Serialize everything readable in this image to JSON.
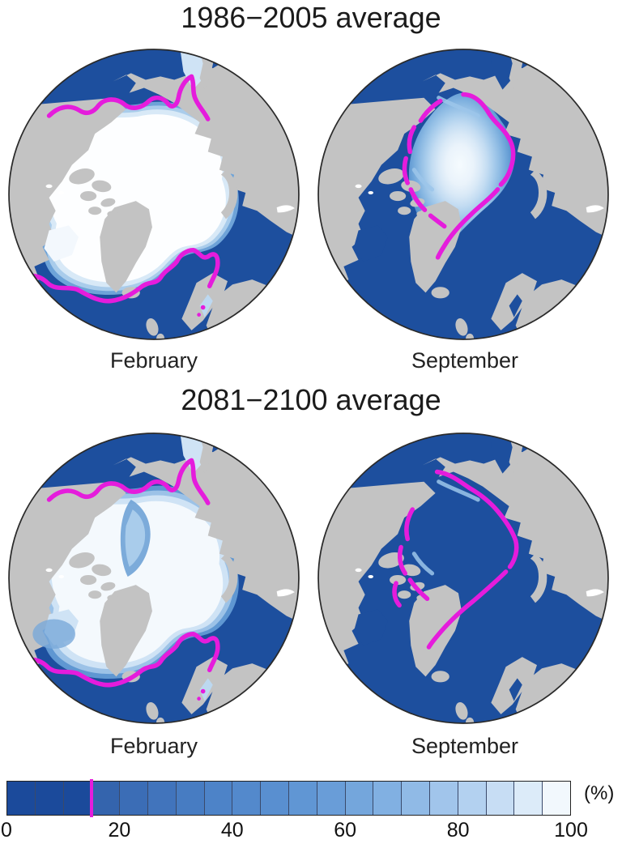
{
  "figure": {
    "rows": [
      {
        "title": "1986−2005 average",
        "panels": [
          {
            "month": "February"
          },
          {
            "month": "September"
          }
        ]
      },
      {
        "title": "2081−2100 average",
        "panels": [
          {
            "month": "February"
          },
          {
            "month": "September"
          }
        ]
      }
    ]
  },
  "colorbar": {
    "unit_label": "(%)",
    "ticks": [
      "0",
      "20",
      "40",
      "60",
      "80",
      "100"
    ],
    "segments": [
      "#1b4a9b",
      "#1b4a9b",
      "#1b4a9b",
      "#3464ad",
      "#3b6db6",
      "#4174bc",
      "#477cc2",
      "#4d83c8",
      "#5389cc",
      "#598fd0",
      "#6096d4",
      "#699dd8",
      "#74a6dc",
      "#81b0e2",
      "#90bae6",
      "#a1c5eb",
      "#b3d1f0",
      "#c7ddf4",
      "#dcebf9",
      "#f2f8fd"
    ],
    "threshold_marker": {
      "value_percent": 15,
      "color": "#e51cdc"
    }
  },
  "colors": {
    "ocean": "#1d4f9e",
    "land": "#c3c3c3",
    "ice_core": "#fdfeff",
    "contour_magenta": "#e51cdc",
    "circle_outline": "#2a2a2a",
    "background": "#ffffff"
  },
  "chart_data": {
    "type": "map",
    "subtype": "arctic-sea-ice-concentration-polar-projection",
    "value_range_percent": [
      0,
      100
    ],
    "colorbar": {
      "label": "(%)",
      "tick_step": 20,
      "n_segments": 20,
      "threshold_line_percent": 15
    },
    "panels": [
      {
        "period": "1986−2005 average",
        "month": "February",
        "ice": "near-100% white ice cover over central Arctic; 15% magenta edge in Bering Sea and North Atlantic"
      },
      {
        "period": "1986−2005 average",
        "month": "September",
        "ice": "reduced ice with concentric concentration gradient in central Arctic basin; magenta 15% edge hugging coasts"
      },
      {
        "period": "2081−2100 average",
        "month": "February",
        "ice": "similar extent but lower concentration; broader blue gradient bands"
      },
      {
        "period": "2081−2100 average",
        "month": "September",
        "ice": "essentially ice-free ocean; only magenta 15% contour shown"
      }
    ]
  }
}
